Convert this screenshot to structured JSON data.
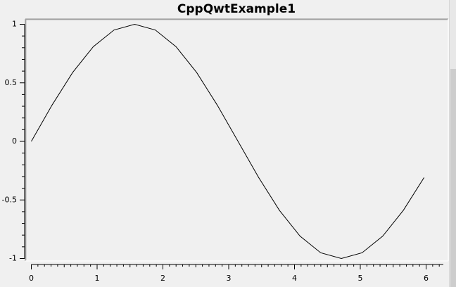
{
  "window": {
    "title": "CppQwtExample1"
  },
  "chart_data": {
    "type": "line",
    "title": "CppQwtExample1",
    "xlabel": "",
    "ylabel": "",
    "xlim": [
      0,
      6.28
    ],
    "ylim": [
      -1,
      1
    ],
    "x_ticks": [
      0,
      1,
      2,
      3,
      4,
      5,
      6
    ],
    "x_tick_labels": [
      "0",
      "1",
      "2",
      "3",
      "4",
      "5",
      "6"
    ],
    "y_ticks": [
      1,
      0.5,
      0,
      -0.5,
      -1
    ],
    "y_tick_labels": [
      "1",
      "0.5",
      "0",
      "-0.5",
      "-1"
    ],
    "grid": false,
    "series": [
      {
        "color": "#000000",
        "x": [
          0,
          0.314,
          0.628,
          0.942,
          1.257,
          1.571,
          1.885,
          2.199,
          2.513,
          2.827,
          3.142,
          3.456,
          3.77,
          4.084,
          4.398,
          4.712,
          5.027,
          5.341,
          5.655,
          5.969
        ],
        "y": [
          0,
          0.309,
          0.588,
          0.809,
          0.951,
          1.0,
          0.951,
          0.809,
          0.588,
          0.309,
          0,
          -0.309,
          -0.588,
          -0.809,
          -0.951,
          -1.0,
          -0.951,
          -0.809,
          -0.588,
          -0.309
        ]
      }
    ]
  }
}
